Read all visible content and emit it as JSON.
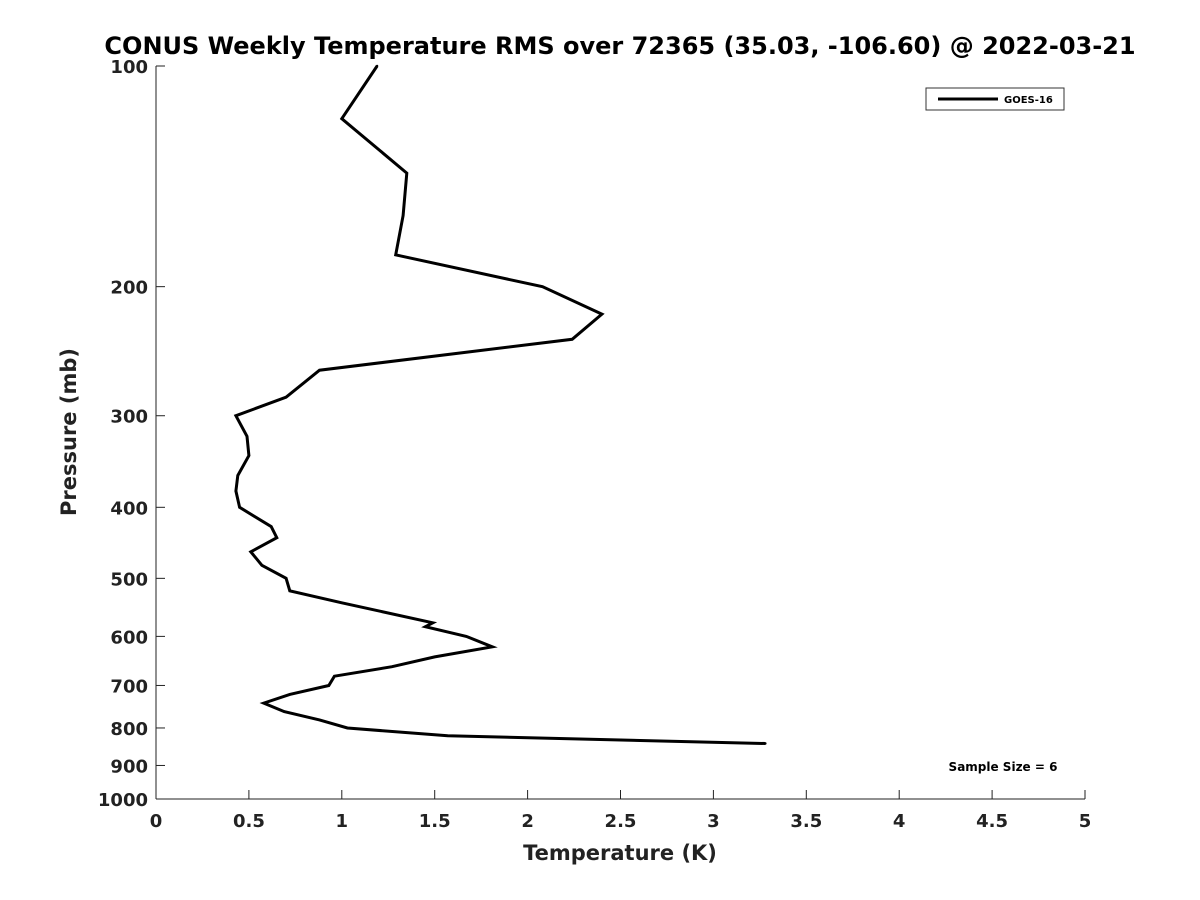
{
  "chart_data": {
    "type": "line",
    "title": "CONUS Weekly Temperature RMS over 72365 (35.03, -106.60) @ 2022-03-21",
    "xlabel": "Temperature (K)",
    "ylabel": "Pressure (mb)",
    "xlim": [
      0,
      5
    ],
    "ylim": [
      100,
      1000
    ],
    "y_scale": "log",
    "y_reversed": true,
    "x_ticks": [
      0,
      0.5,
      1,
      1.5,
      2,
      2.5,
      3,
      3.5,
      4,
      4.5,
      5
    ],
    "x_tick_labels": [
      "0",
      "0.5",
      "1",
      "1.5",
      "2",
      "2.5",
      "3",
      "3.5",
      "4",
      "4.5",
      "5"
    ],
    "y_ticks": [
      100,
      200,
      300,
      400,
      500,
      600,
      700,
      800,
      900,
      1000
    ],
    "y_tick_labels": [
      "100",
      "200",
      "300",
      "400",
      "500",
      "600",
      "700",
      "800",
      "900",
      "1000"
    ],
    "grid": false,
    "legend_position": "top-right",
    "annotation": "Sample Size = 6",
    "series": [
      {
        "name": "GOES-16",
        "color": "#000000",
        "points": [
          {
            "x": 1.19,
            "p": 100
          },
          {
            "x": 1.0,
            "p": 118
          },
          {
            "x": 1.35,
            "p": 140
          },
          {
            "x": 1.33,
            "p": 160
          },
          {
            "x": 1.29,
            "p": 181
          },
          {
            "x": 2.08,
            "p": 200
          },
          {
            "x": 2.4,
            "p": 218
          },
          {
            "x": 2.24,
            "p": 236
          },
          {
            "x": 0.88,
            "p": 260
          },
          {
            "x": 0.7,
            "p": 283
          },
          {
            "x": 0.43,
            "p": 300
          },
          {
            "x": 0.49,
            "p": 320
          },
          {
            "x": 0.5,
            "p": 340
          },
          {
            "x": 0.44,
            "p": 362
          },
          {
            "x": 0.43,
            "p": 380
          },
          {
            "x": 0.45,
            "p": 400
          },
          {
            "x": 0.62,
            "p": 425
          },
          {
            "x": 0.65,
            "p": 440
          },
          {
            "x": 0.51,
            "p": 460
          },
          {
            "x": 0.57,
            "p": 480
          },
          {
            "x": 0.7,
            "p": 500
          },
          {
            "x": 0.72,
            "p": 520
          },
          {
            "x": 1.0,
            "p": 540
          },
          {
            "x": 1.49,
            "p": 575
          },
          {
            "x": 1.45,
            "p": 582
          },
          {
            "x": 1.67,
            "p": 600
          },
          {
            "x": 1.81,
            "p": 620
          },
          {
            "x": 1.5,
            "p": 640
          },
          {
            "x": 1.27,
            "p": 660
          },
          {
            "x": 0.96,
            "p": 680
          },
          {
            "x": 0.93,
            "p": 700
          },
          {
            "x": 0.72,
            "p": 720
          },
          {
            "x": 0.58,
            "p": 740
          },
          {
            "x": 0.69,
            "p": 760
          },
          {
            "x": 0.88,
            "p": 780
          },
          {
            "x": 1.03,
            "p": 800
          },
          {
            "x": 1.57,
            "p": 820
          },
          {
            "x": 3.28,
            "p": 840
          }
        ]
      }
    ]
  }
}
